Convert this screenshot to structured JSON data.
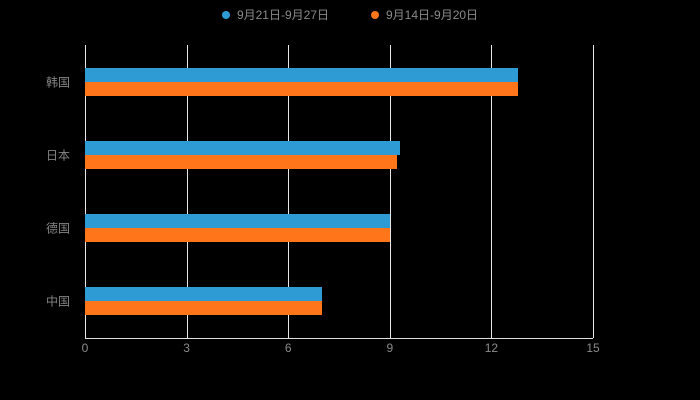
{
  "legend": {
    "items": [
      {
        "label": "9月21日-9月27日",
        "color": "#2E9BD5"
      },
      {
        "label": "9月14日-9月20日",
        "color": "#FF7519"
      }
    ]
  },
  "chart_data": {
    "type": "bar",
    "orientation": "horizontal",
    "title": "",
    "xlabel": "",
    "ylabel": "",
    "categories": [
      "韩国",
      "日本",
      "德国",
      "中国"
    ],
    "series": [
      {
        "name": "9月21日-9月27日",
        "color": "#2E9BD5",
        "values": [
          12.8,
          9.3,
          9.0,
          7.0
        ]
      },
      {
        "name": "9月14日-9月20日",
        "color": "#FF7519",
        "values": [
          12.8,
          9.2,
          9.0,
          7.0
        ]
      }
    ],
    "xlim": [
      0,
      15
    ],
    "xticks": [
      0,
      3,
      6,
      9,
      12,
      15
    ],
    "grid": true,
    "legend_position": "top",
    "background": "#000000"
  }
}
